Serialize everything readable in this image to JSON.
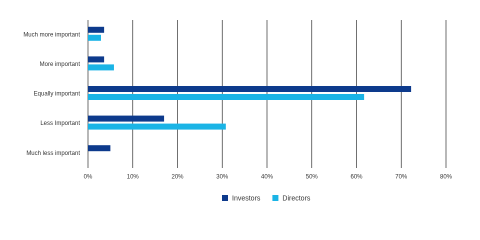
{
  "chart_data": {
    "type": "bar",
    "orientation": "horizontal",
    "categories": [
      "Much more important",
      "More important",
      "Equally important",
      "Less Important",
      "Much less important"
    ],
    "series": [
      {
        "name": "Investors",
        "color": "#0d3a8c",
        "values": [
          3.6,
          3.6,
          72.2,
          17,
          5
        ]
      },
      {
        "name": "Directors",
        "color": "#1ab4e6",
        "values": [
          2.9,
          5.8,
          61.7,
          30.8,
          0
        ]
      }
    ],
    "xlim": [
      0,
      80
    ],
    "xticks": [
      {
        "value": 0,
        "label": "0%"
      },
      {
        "value": 10,
        "label": "10%"
      },
      {
        "value": 20,
        "label": "20%"
      },
      {
        "value": 30,
        "label": "30%"
      },
      {
        "value": 40,
        "label": "40%"
      },
      {
        "value": 50,
        "label": "50%"
      },
      {
        "value": 60,
        "label": "60%"
      },
      {
        "value": 70,
        "label": "70%"
      },
      {
        "value": 80,
        "label": "80%"
      }
    ],
    "grid": true,
    "legend": "bottom"
  }
}
